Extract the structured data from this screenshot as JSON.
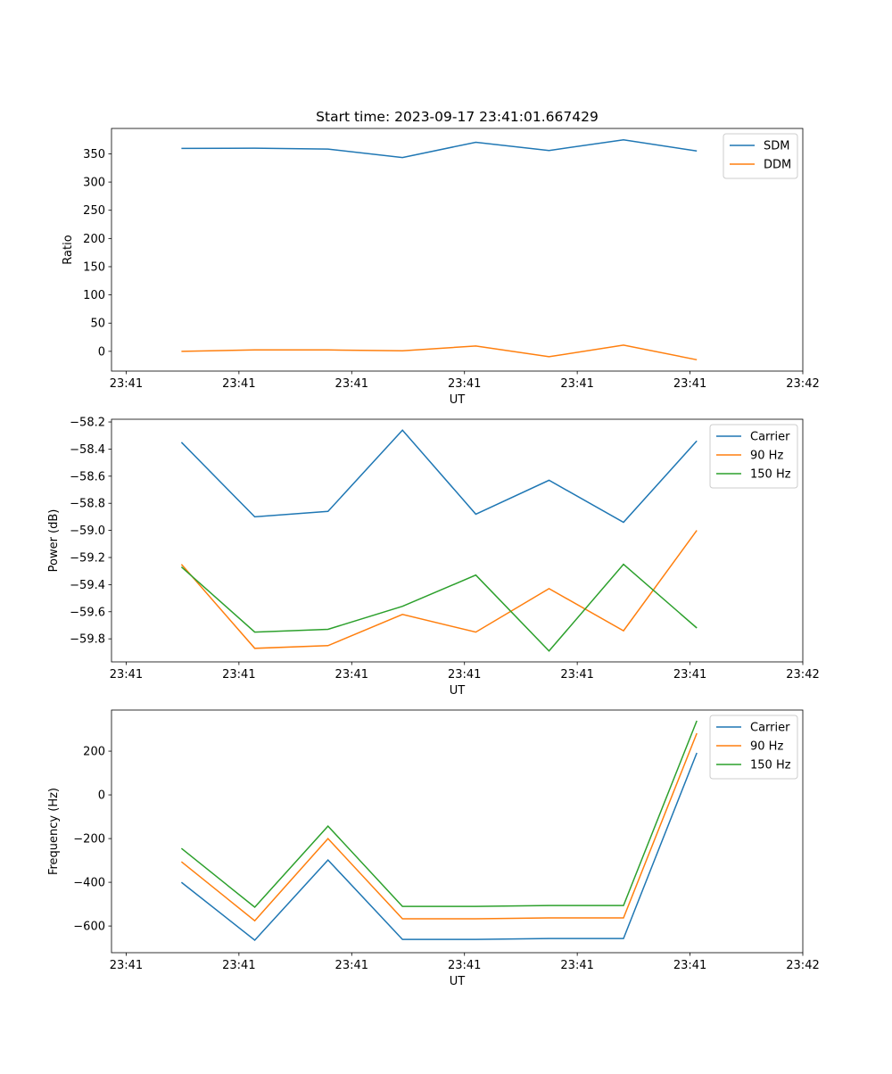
{
  "chart_data": [
    {
      "type": "line",
      "title": "Start time: 2023-09-17 23:41:01.667429",
      "xlabel": "UT",
      "ylabel": "Ratio",
      "x": [
        4.9,
        11.4,
        17.9,
        24.5,
        31.0,
        37.5,
        44.1,
        50.6
      ],
      "xlim": [
        -1.3,
        60.0
      ],
      "xticks": [
        0,
        10,
        20,
        30,
        40,
        50,
        60
      ],
      "xtick_labels": [
        "23:41",
        "23:41",
        "23:41",
        "23:41",
        "23:41",
        "23:41",
        "23:42"
      ],
      "ylim": [
        -35,
        395
      ],
      "yticks": [
        0,
        50,
        100,
        150,
        200,
        250,
        300,
        350
      ],
      "series": [
        {
          "name": "SDM",
          "color": "#1f77b4",
          "values": [
            359.6,
            360,
            358.5,
            343.5,
            370.5,
            356,
            375,
            355
          ]
        },
        {
          "name": "DDM",
          "color": "#ff7f0e",
          "values": [
            0,
            2.4,
            2.4,
            1,
            9.5,
            -9.5,
            11,
            -15
          ]
        }
      ],
      "legend": "top-right"
    },
    {
      "type": "line",
      "title": "",
      "xlabel": "UT",
      "ylabel": "Power (dB)",
      "x": [
        4.9,
        11.4,
        17.9,
        24.5,
        31.0,
        37.5,
        44.1,
        50.6
      ],
      "xlim": [
        -1.3,
        60.0
      ],
      "xticks": [
        0,
        10,
        20,
        30,
        40,
        50,
        60
      ],
      "xtick_labels": [
        "23:41",
        "23:41",
        "23:41",
        "23:41",
        "23:41",
        "23:41",
        "23:42"
      ],
      "ylim": [
        -59.97,
        -58.18
      ],
      "yticks": [
        -58.2,
        -58.4,
        -58.6,
        -58.8,
        -59.0,
        -59.2,
        -59.4,
        -59.6,
        -59.8
      ],
      "ytick_labels": [
        "−58.2",
        "−58.4",
        "−58.6",
        "−58.8",
        "−59.0",
        "−59.2",
        "−59.4",
        "−59.6",
        "−59.8"
      ],
      "series": [
        {
          "name": "Carrier",
          "color": "#1f77b4",
          "values": [
            -58.35,
            -58.9,
            -58.86,
            -58.26,
            -58.88,
            -58.63,
            -58.94,
            -58.34
          ]
        },
        {
          "name": "90 Hz",
          "color": "#ff7f0e",
          "values": [
            -59.25,
            -59.87,
            -59.85,
            -59.62,
            -59.75,
            -59.43,
            -59.74,
            -59.0
          ]
        },
        {
          "name": "150 Hz",
          "color": "#2ca02c",
          "values": [
            -59.27,
            -59.75,
            -59.73,
            -59.56,
            -59.33,
            -59.89,
            -59.25,
            -59.72
          ]
        }
      ],
      "legend": "top-right"
    },
    {
      "type": "line",
      "title": "",
      "xlabel": "UT",
      "ylabel": "Frequency (Hz)",
      "x": [
        4.9,
        11.4,
        17.9,
        24.5,
        31.0,
        37.5,
        44.1,
        50.6
      ],
      "xlim": [
        -1.3,
        60.0
      ],
      "xticks": [
        0,
        10,
        20,
        30,
        40,
        50,
        60
      ],
      "xtick_labels": [
        "23:41",
        "23:41",
        "23:41",
        "23:41",
        "23:41",
        "23:41",
        "23:42"
      ],
      "ylim": [
        -722,
        388
      ],
      "yticks": [
        200,
        0,
        -200,
        -400,
        -600
      ],
      "ytick_labels": [
        "200",
        "0",
        "−200",
        "−400",
        "−600"
      ],
      "series": [
        {
          "name": "Carrier",
          "color": "#1f77b4",
          "values": [
            -400,
            -665,
            -298,
            -661,
            -661,
            -657,
            -657,
            192
          ]
        },
        {
          "name": "90 Hz",
          "color": "#ff7f0e",
          "values": [
            -306,
            -576,
            -200,
            -567,
            -567,
            -563,
            -563,
            282
          ]
        },
        {
          "name": "150 Hz",
          "color": "#2ca02c",
          "values": [
            -245,
            -514,
            -143,
            -510,
            -510,
            -506,
            -506,
            339
          ]
        }
      ],
      "legend": "top-right"
    }
  ]
}
